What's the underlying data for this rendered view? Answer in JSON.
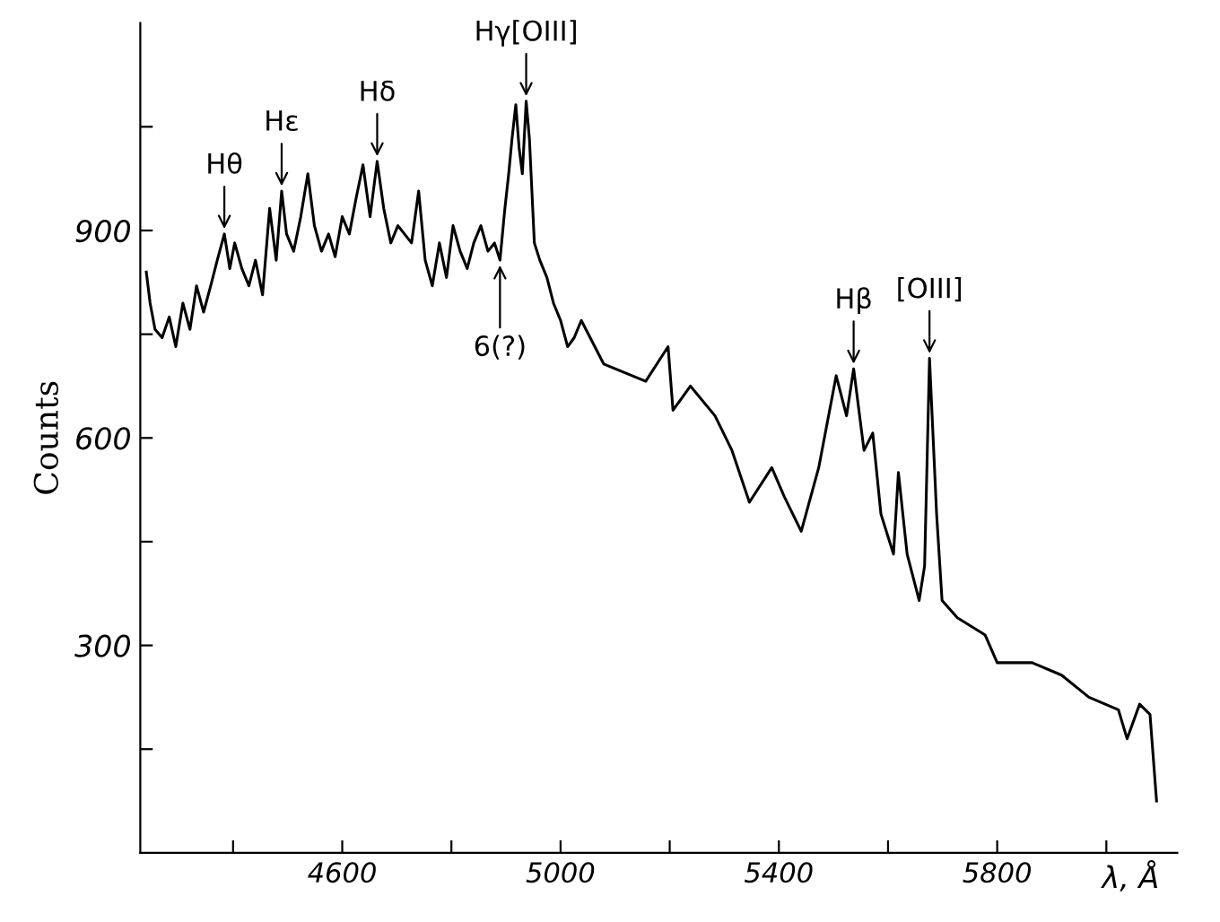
{
  "chart_data": {
    "type": "line",
    "xlabel": "λ, Å",
    "ylabel": "Counts",
    "xlim": [
      4230,
      6130
    ],
    "ylim": [
      0,
      1200
    ],
    "xticks": [
      {
        "value": 4400,
        "label": null
      },
      4600,
      {
        "value": 4800,
        "label": null
      },
      5000,
      {
        "value": 5200,
        "label": null
      },
      5400,
      {
        "value": 5600,
        "label": null
      },
      5800,
      {
        "value": 6000,
        "label": null
      }
    ],
    "yticks": [
      {
        "value": 150,
        "label": null
      },
      300,
      {
        "value": 450,
        "label": null
      },
      600,
      {
        "value": 750,
        "label": null
      },
      900,
      {
        "value": 1050,
        "label": null
      }
    ],
    "grid": false,
    "legend": false,
    "marker": "none",
    "line_style": "solid",
    "series": [
      {
        "color": "#000000",
        "x": [
          4241,
          4248,
          4257,
          4270,
          4283,
          4295,
          4308,
          4321,
          4333,
          4346,
          4359,
          4371,
          4384,
          4394,
          4403,
          4416,
          4429,
          4441,
          4454,
          4467,
          4479,
          4489,
          4498,
          4511,
          4524,
          4537,
          4549,
          4562,
          4575,
          4587,
          4600,
          4613,
          4625,
          4638,
          4651,
          4664,
          4676,
          4689,
          4702,
          4714,
          4727,
          4740,
          4752,
          4765,
          4778,
          4791,
          4803,
          4816,
          4829,
          4841,
          4854,
          4867,
          4879,
          4889,
          4898,
          4905,
          4911,
          4918,
          4924,
          4930,
          4937,
          4943,
          4952,
          4962,
          4975,
          4987,
          5000,
          5013,
          5025,
          5038,
          5079,
          5156,
          5197,
          5206,
          5238,
          5283,
          5314,
          5346,
          5387,
          5410,
          5441,
          5473,
          5505,
          5524,
          5537,
          5556,
          5572,
          5587,
          5610,
          5619,
          5635,
          5657,
          5667,
          5676,
          5689,
          5699,
          5727,
          5778,
          5800,
          5864,
          5918,
          5968,
          6022,
          6038,
          6061,
          6080,
          6092
        ],
        "values": [
          840,
          795,
          757,
          745,
          775,
          732,
          795,
          757,
          820,
          782,
          820,
          857,
          895,
          845,
          882,
          845,
          820,
          857,
          807,
          932,
          857,
          957,
          895,
          870,
          920,
          982,
          907,
          870,
          895,
          862,
          920,
          895,
          945,
          995,
          920,
          1000,
          932,
          882,
          907,
          895,
          882,
          957,
          857,
          820,
          882,
          832,
          907,
          870,
          845,
          882,
          907,
          870,
          882,
          857,
          932,
          982,
          1032,
          1082,
          1020,
          982,
          1087,
          1032,
          882,
          857,
          832,
          795,
          770,
          732,
          745,
          770,
          707,
          682,
          732,
          640,
          675,
          632,
          582,
          507,
          557,
          515,
          465,
          557,
          690,
          632,
          700,
          582,
          607,
          490,
          432,
          550,
          432,
          365,
          415,
          715,
          490,
          365,
          340,
          315,
          275,
          275,
          257,
          225,
          207,
          165,
          215,
          200,
          75
        ]
      }
    ],
    "annotations": [
      {
        "text": "Hθ",
        "x": 4384,
        "y": 895
      },
      {
        "text": "Hε",
        "x": 4489,
        "y": 957
      },
      {
        "text": "Hδ",
        "x": 4664,
        "y": 1000
      },
      {
        "text": "Hγ[OIII]",
        "x": 4937,
        "y": 1087
      },
      {
        "text": "6(?)",
        "x": 4889,
        "y": 857
      },
      {
        "text": "Hβ",
        "x": 5537,
        "y": 700
      },
      {
        "text": "[OIII]",
        "x": 5676,
        "y": 715
      }
    ]
  }
}
